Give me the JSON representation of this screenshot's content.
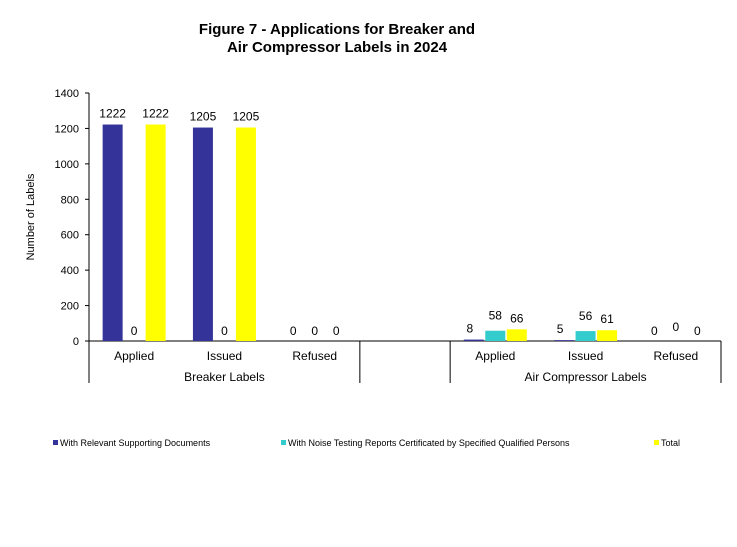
{
  "chart_data": {
    "type": "bar",
    "title": [
      "Figure 7 - Applications for Breaker and",
      "Air Compressor Labels in 2024"
    ],
    "ylabel": "Number of Labels",
    "xlabel": "",
    "ylim": [
      0,
      1400
    ],
    "yticks": [
      0,
      200,
      400,
      600,
      800,
      1000,
      1200,
      1400
    ],
    "grid": false,
    "legend_position": "bottom",
    "groups": [
      {
        "label": "Breaker Labels",
        "categories": [
          "Applied",
          "Issued",
          "Refused"
        ]
      },
      {
        "label": "Air Compressor Labels",
        "categories": [
          "Applied",
          "Issued",
          "Refused"
        ]
      }
    ],
    "series": [
      {
        "name": "With Relevant Supporting Documents",
        "color": "#333399",
        "values": [
          [
            1222,
            1205,
            0
          ],
          [
            8,
            5,
            0
          ]
        ]
      },
      {
        "name": "With Noise Testing Reports Certificated by Specified Qualified Persons",
        "color": "#33CCCC",
        "values": [
          [
            0,
            0,
            0
          ],
          [
            58,
            56,
            0
          ]
        ]
      },
      {
        "name": "Total",
        "color": "#FFFF00",
        "values": [
          [
            1222,
            1205,
            0
          ],
          [
            66,
            61,
            0
          ]
        ]
      }
    ]
  }
}
